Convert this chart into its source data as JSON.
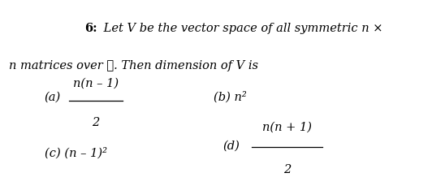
{
  "background_color": "#ffffff",
  "figsize": [
    5.48,
    2.3
  ],
  "dpi": 100,
  "title_bold": "6:",
  "title_italic": " Let V be the vector space of all symmetric n ×",
  "title_line2": "n matrices over ℝ. Then dimension of V is",
  "option_a_label": "(a)",
  "option_a_num": "n(n – 1)",
  "option_a_den": "2",
  "option_b": "(b) n²",
  "option_c": "(c) (n – 1)²",
  "option_d_label": "(d)",
  "option_d_num": "n(n + 1)",
  "option_d_den": "2",
  "font_size": 10.5
}
